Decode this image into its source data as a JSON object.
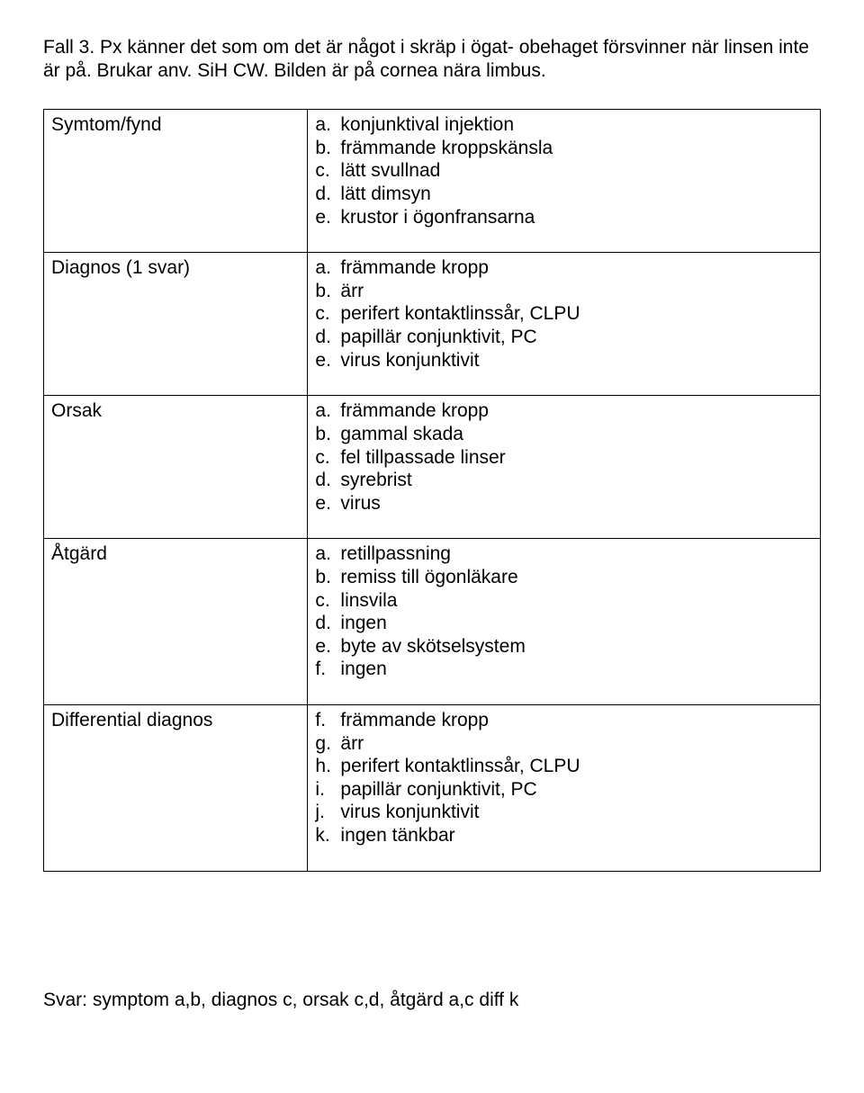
{
  "intro": "Fall 3. Px känner det som om det är något i skräp i ögat- obehaget försvinner när linsen inte är på. Brukar anv. SiH CW. Bilden är på cornea nära limbus.",
  "rows": [
    {
      "label": "Symtom/fynd",
      "start": "a",
      "items": [
        "konjunktival injektion",
        "främmande kroppskänsla",
        "lätt svullnad",
        "lätt dimsyn",
        "krustor i ögonfransarna"
      ]
    },
    {
      "label": "Diagnos (1 svar)",
      "start": "a",
      "items": [
        "främmande kropp",
        "ärr",
        "perifert kontaktlinssår, CLPU",
        "papillär conjunktivit, PC",
        "virus konjunktivit"
      ]
    },
    {
      "label": "Orsak",
      "start": "a",
      "items": [
        "främmande kropp",
        "gammal skada",
        "fel tillpassade linser",
        "syrebrist",
        "virus"
      ]
    },
    {
      "label": "Åtgärd",
      "start": "a",
      "items": [
        "retillpassning",
        "remiss till ögonläkare",
        "linsvila",
        "ingen",
        "byte av skötselsystem",
        "ingen"
      ]
    },
    {
      "label": "Differential diagnos",
      "start": "f",
      "items": [
        "främmande kropp",
        "ärr",
        "perifert kontaktlinssår, CLPU",
        "papillär conjunktivit, PC",
        "virus konjunktivit",
        "ingen tänkbar"
      ]
    }
  ],
  "answer": "Svar: symptom a,b, diagnos c, orsak c,d, åtgärd a,c  diff k"
}
